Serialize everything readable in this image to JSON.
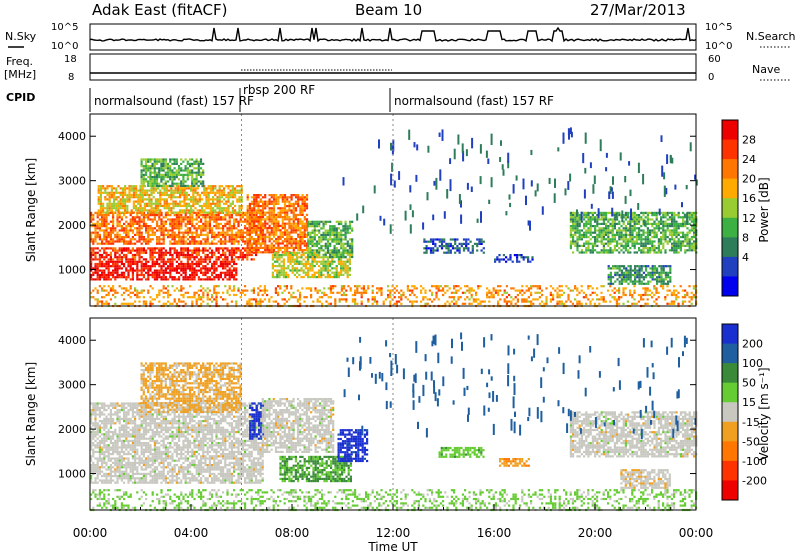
{
  "header": {
    "title": "Adak East (fitACF)",
    "beam": "Beam 10",
    "date": "27/Mar/2013"
  },
  "noise_panel": {
    "left_label": "N.Sky",
    "left_ticks": [
      "10^5",
      "10^0"
    ],
    "right_label": "N.Search",
    "right_ticks": [
      "10^5",
      "10^0"
    ]
  },
  "freq_panel": {
    "left_label_1": "Freq.",
    "left_label_2": "[MHz]",
    "left_ticks": [
      "18",
      "8"
    ],
    "right_label": "Nave",
    "right_ticks": [
      "60",
      "0"
    ]
  },
  "cpid": {
    "label": "CPID",
    "segments": [
      {
        "start": 0,
        "text": "normalsound (fast) 157 RF"
      },
      {
        "start": 6,
        "text": "rbsp 200 RF"
      },
      {
        "start": 12,
        "text": "normalsound (fast) 157 RF"
      }
    ]
  },
  "colors": {
    "power_scale": [
      "#0000ee",
      "#2040c0",
      "#2e7d5a",
      "#3cb043",
      "#99cc33",
      "#ffaa00",
      "#ff7700",
      "#ff3300",
      "#ee0000"
    ],
    "velocity_scale": [
      "#1a2fd0",
      "#1f5fa0",
      "#3a8a3a",
      "#66cc33",
      "#c8c8c0",
      "#f0a020",
      "#ff7700",
      "#ff3300",
      "#ee0000"
    ]
  },
  "chart_data": [
    {
      "type": "heatmap",
      "title": "Power",
      "xlabel": "",
      "ylabel": "Slant Range [km]",
      "xlim": [
        0,
        24
      ],
      "ylim": [
        180,
        4500
      ],
      "yticks": [
        "4000",
        "3000",
        "2000",
        "1000"
      ],
      "colorbar": {
        "label": "Power [dB]",
        "ticks": [
          "28",
          "24",
          "20",
          "16",
          "12",
          "8",
          "4"
        ],
        "range": [
          0,
          30
        ]
      },
      "regions": [
        {
          "t0": 0.0,
          "t1": 5.8,
          "r0": 800,
          "r1": 1200,
          "v": 28
        },
        {
          "t0": 0.0,
          "t1": 6.6,
          "r0": 1250,
          "r1": 1500,
          "v": 26
        },
        {
          "t0": 0.0,
          "t1": 6.8,
          "r0": 1600,
          "r1": 2300,
          "v": 22
        },
        {
          "t0": 0.3,
          "t1": 6.0,
          "r0": 2300,
          "r1": 2900,
          "v": 18
        },
        {
          "t0": 2.0,
          "t1": 4.5,
          "r0": 2900,
          "r1": 3500,
          "v": 12
        },
        {
          "t0": 6.2,
          "t1": 8.6,
          "r0": 1400,
          "r1": 2700,
          "v": 22
        },
        {
          "t0": 7.2,
          "t1": 10.3,
          "r0": 850,
          "r1": 1400,
          "v": 16
        },
        {
          "t0": 8.6,
          "t1": 10.4,
          "r0": 1300,
          "r1": 2100,
          "v": 12
        },
        {
          "t0": 13.2,
          "t1": 15.6,
          "r0": 1400,
          "r1": 1700,
          "v": 6
        },
        {
          "t0": 16.0,
          "t1": 17.5,
          "r0": 1200,
          "r1": 1350,
          "v": 5
        },
        {
          "t0": 19.0,
          "t1": 24.0,
          "r0": 1400,
          "r1": 2300,
          "v": 12
        },
        {
          "t0": 20.5,
          "t1": 23.0,
          "r0": 700,
          "r1": 1100,
          "v": 10
        },
        {
          "t0": 0.0,
          "t1": 24.0,
          "r0": 180,
          "r1": 650,
          "v": 20
        }
      ]
    },
    {
      "type": "heatmap",
      "title": "Velocity",
      "xlabel": "Time UT",
      "ylabel": "Slant Range [km]",
      "xlim": [
        0,
        24
      ],
      "ylim": [
        180,
        4500
      ],
      "yticks": [
        "4000",
        "3000",
        "2000",
        "1000"
      ],
      "xticks": [
        "00:00",
        "04:00",
        "08:00",
        "12:00",
        "16:00",
        "20:00",
        "00:00"
      ],
      "colorbar": {
        "label": "Velocity [m s⁻¹]",
        "ticks": [
          "200",
          "100",
          "50",
          "15",
          "-15",
          "-50",
          "-100",
          "-200"
        ],
        "range": [
          -250,
          250
        ]
      },
      "regions": [
        {
          "t0": 0.0,
          "t1": 6.8,
          "r0": 800,
          "r1": 2600,
          "v": 0
        },
        {
          "t0": 2.0,
          "t1": 6.0,
          "r0": 2400,
          "r1": 3500,
          "v": -40
        },
        {
          "t0": 6.3,
          "t1": 6.9,
          "r0": 1800,
          "r1": 2600,
          "v": 220
        },
        {
          "t0": 6.8,
          "t1": 9.6,
          "r0": 1500,
          "r1": 2700,
          "v": 0
        },
        {
          "t0": 7.5,
          "t1": 10.3,
          "r0": 850,
          "r1": 1400,
          "v": 90
        },
        {
          "t0": 9.8,
          "t1": 11.0,
          "r0": 1300,
          "r1": 2000,
          "v": 220
        },
        {
          "t0": 13.8,
          "t1": 15.6,
          "r0": 1400,
          "r1": 1600,
          "v": 60
        },
        {
          "t0": 16.2,
          "t1": 17.4,
          "r0": 1200,
          "r1": 1350,
          "v": -70
        },
        {
          "t0": 19.0,
          "t1": 24.0,
          "r0": 1400,
          "r1": 2400,
          "v": 0
        },
        {
          "t0": 21.0,
          "t1": 23.0,
          "r0": 700,
          "r1": 1100,
          "v": -10
        },
        {
          "t0": 0.0,
          "t1": 24.0,
          "r0": 180,
          "r1": 650,
          "v": 40
        }
      ]
    }
  ]
}
